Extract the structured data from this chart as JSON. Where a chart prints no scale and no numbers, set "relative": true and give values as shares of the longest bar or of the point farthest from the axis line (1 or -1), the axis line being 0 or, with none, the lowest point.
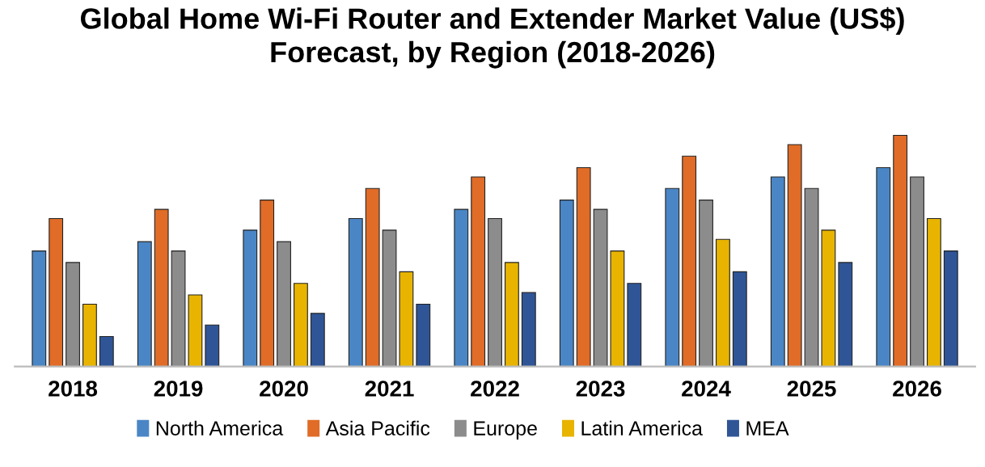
{
  "chart_data": {
    "type": "bar",
    "title": "Global Home Wi-Fi Router and Extender Market Value (US$)\nForecast, by Region (2018-2026)",
    "relative": true,
    "legend": "bottom",
    "grid": false,
    "categories": [
      "2018",
      "2019",
      "2020",
      "2021",
      "2022",
      "2023",
      "2024",
      "2025",
      "2026"
    ],
    "series": [
      {
        "name": "North America",
        "color": "#4a86c5",
        "values": [
          0.5,
          0.54,
          0.59,
          0.64,
          0.68,
          0.72,
          0.77,
          0.82,
          0.86
        ]
      },
      {
        "name": "Asia Pacific",
        "color": "#e06c27",
        "values": [
          0.64,
          0.68,
          0.72,
          0.77,
          0.82,
          0.86,
          0.91,
          0.96,
          1.0
        ]
      },
      {
        "name": "Europe",
        "color": "#8c8c8c",
        "values": [
          0.45,
          0.5,
          0.54,
          0.59,
          0.64,
          0.68,
          0.72,
          0.77,
          0.82
        ]
      },
      {
        "name": "Latin America",
        "color": "#e8b400",
        "values": [
          0.27,
          0.31,
          0.36,
          0.41,
          0.45,
          0.5,
          0.55,
          0.59,
          0.64
        ]
      },
      {
        "name": "MEA",
        "color": "#2f5597",
        "values": [
          0.13,
          0.18,
          0.23,
          0.27,
          0.32,
          0.36,
          0.41,
          0.45,
          0.5
        ]
      }
    ]
  }
}
